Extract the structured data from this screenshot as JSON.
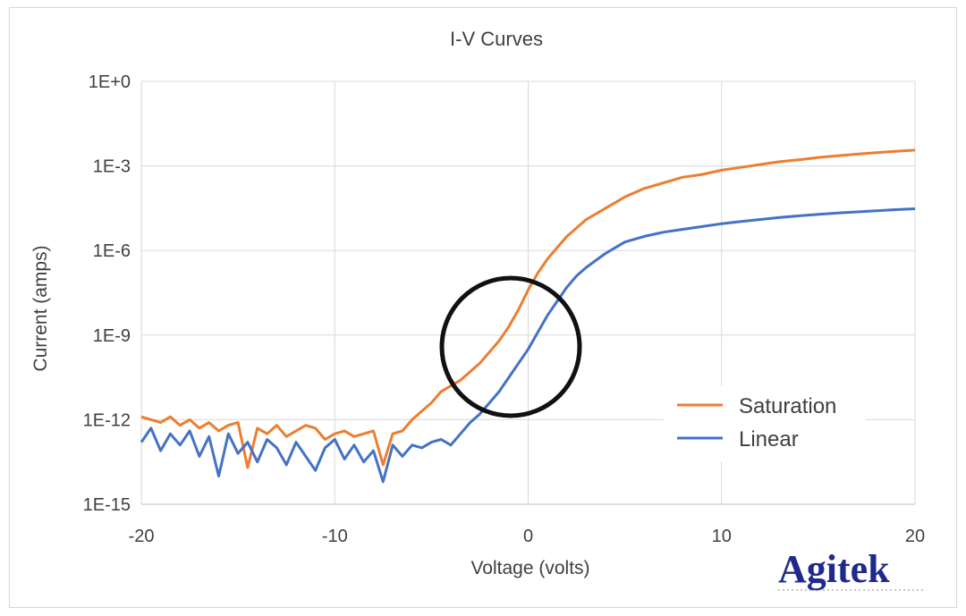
{
  "chart_data": {
    "type": "line",
    "title": "I-V Curves",
    "xlabel": "Voltage (volts)",
    "ylabel": "Current (amps)",
    "xlim": [
      -20,
      20
    ],
    "ylim_log10": [
      -15,
      0
    ],
    "y_scale": "log",
    "x_ticks": [
      -20,
      -10,
      0,
      10,
      20
    ],
    "x_tick_labels": [
      "-20",
      "-10",
      "0",
      "10",
      "20"
    ],
    "y_ticks_log10": [
      0,
      -3,
      -6,
      -9,
      -12,
      -15
    ],
    "y_tick_labels": [
      "1E+0",
      "1E-3",
      "1E-6",
      "1E-9",
      "1E-12",
      "1E-15"
    ],
    "grid": true,
    "legend_position": "bottom-right",
    "series": [
      {
        "name": "Saturation",
        "color": "#ed7d31",
        "x": [
          -20,
          -19.5,
          -19,
          -18.5,
          -18,
          -17.5,
          -17,
          -16.5,
          -16,
          -15.5,
          -15,
          -14.5,
          -14,
          -13.5,
          -13,
          -12.5,
          -12,
          -11.5,
          -11,
          -10.5,
          -10,
          -9.5,
          -9,
          -8.5,
          -8,
          -7.5,
          -7,
          -6.5,
          -6,
          -5.5,
          -5,
          -4.5,
          -4,
          -3.5,
          -3,
          -2.5,
          -2,
          -1.5,
          -1,
          -0.5,
          0,
          0.5,
          1,
          1.5,
          2,
          2.5,
          3,
          4,
          5,
          6,
          7,
          8,
          9,
          10,
          11,
          12,
          13,
          14,
          15,
          16,
          17,
          18,
          19,
          20
        ],
        "log10_current": [
          -11.9,
          -12.0,
          -12.1,
          -11.9,
          -12.2,
          -12.0,
          -12.3,
          -12.1,
          -12.4,
          -12.2,
          -12.1,
          -13.7,
          -12.3,
          -12.5,
          -12.2,
          -12.6,
          -12.4,
          -12.2,
          -12.3,
          -12.7,
          -12.5,
          -12.4,
          -12.6,
          -12.5,
          -12.4,
          -13.6,
          -12.5,
          -12.4,
          -12.0,
          -11.7,
          -11.4,
          -11.0,
          -10.8,
          -10.6,
          -10.3,
          -10.0,
          -9.6,
          -9.2,
          -8.7,
          -8.1,
          -7.4,
          -6.8,
          -6.3,
          -5.9,
          -5.5,
          -5.2,
          -4.9,
          -4.5,
          -4.1,
          -3.8,
          -3.6,
          -3.4,
          -3.3,
          -3.15,
          -3.05,
          -2.95,
          -2.85,
          -2.78,
          -2.7,
          -2.64,
          -2.58,
          -2.53,
          -2.48,
          -2.44
        ]
      },
      {
        "name": "Linear",
        "color": "#4472c4",
        "x": [
          -20,
          -19.5,
          -19,
          -18.5,
          -18,
          -17.5,
          -17,
          -16.5,
          -16,
          -15.5,
          -15,
          -14.5,
          -14,
          -13.5,
          -13,
          -12.5,
          -12,
          -11.5,
          -11,
          -10.5,
          -10,
          -9.5,
          -9,
          -8.5,
          -8,
          -7.5,
          -7,
          -6.5,
          -6,
          -5.5,
          -5,
          -4.5,
          -4,
          -3.5,
          -3,
          -2.5,
          -2,
          -1.5,
          -1,
          -0.5,
          0,
          0.5,
          1,
          1.5,
          2,
          2.5,
          3,
          4,
          5,
          6,
          7,
          8,
          9,
          10,
          11,
          12,
          13,
          14,
          15,
          16,
          17,
          18,
          19,
          20
        ],
        "log10_current": [
          -12.8,
          -12.3,
          -13.1,
          -12.5,
          -12.9,
          -12.4,
          -13.3,
          -12.6,
          -14.0,
          -12.5,
          -13.2,
          -12.8,
          -13.5,
          -12.7,
          -13.0,
          -13.6,
          -12.8,
          -13.3,
          -13.8,
          -13.0,
          -12.7,
          -13.4,
          -12.9,
          -13.5,
          -13.1,
          -14.2,
          -12.9,
          -13.3,
          -12.9,
          -13.0,
          -12.8,
          -12.7,
          -12.9,
          -12.5,
          -12.1,
          -11.8,
          -11.4,
          -11.0,
          -10.5,
          -10.0,
          -9.5,
          -8.9,
          -8.3,
          -7.8,
          -7.3,
          -6.9,
          -6.6,
          -6.1,
          -5.7,
          -5.5,
          -5.35,
          -5.25,
          -5.15,
          -5.05,
          -4.97,
          -4.9,
          -4.83,
          -4.77,
          -4.72,
          -4.67,
          -4.63,
          -4.59,
          -4.55,
          -4.52
        ]
      }
    ]
  },
  "annotation": "circle-highlight",
  "logo": {
    "text": "Agitek"
  }
}
